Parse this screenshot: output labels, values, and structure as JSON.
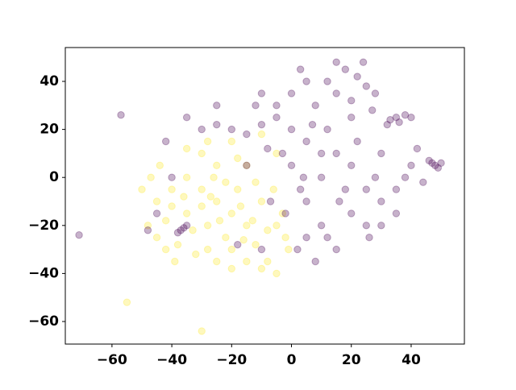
{
  "chart_data": {
    "type": "scatter",
    "xlim": [
      -75.6,
      57.8
    ],
    "ylim": [
      -69.4,
      54.1
    ],
    "xticks": [
      {
        "value": -60,
        "label": "−60"
      },
      {
        "value": -40,
        "label": "−40"
      },
      {
        "value": -20,
        "label": "−20"
      },
      0,
      20,
      40
    ],
    "yticks": [
      {
        "value": -60,
        "label": "−60"
      },
      {
        "value": -40,
        "label": "−40"
      },
      {
        "value": -20,
        "label": "−20"
      },
      0,
      20,
      40
    ],
    "alpha": 0.3,
    "series": [
      {
        "color": "#fde725",
        "x": [
          -20,
          -25,
          -15,
          -30,
          -10,
          -22,
          -35,
          -18,
          -28,
          -12,
          -40,
          -45,
          -38,
          -25,
          -15,
          -30,
          -20,
          -10,
          -8,
          -5,
          -15,
          -25,
          -32,
          -42,
          -48,
          -47,
          -44,
          -35,
          -5,
          -2,
          -6,
          -3,
          -27,
          -17,
          -22,
          -12,
          -33,
          -8,
          -30,
          -40,
          -20,
          -10,
          -28,
          -45,
          -39,
          -18,
          -28,
          -35,
          -5,
          -1,
          -13,
          -24,
          -36,
          -50,
          -42,
          -20,
          -55,
          -30,
          -16,
          -26
        ],
        "y": [
          -15,
          -10,
          -20,
          -5,
          -10,
          -25,
          -15,
          -5,
          -20,
          -28,
          -5,
          -10,
          -28,
          5,
          5,
          10,
          15,
          18,
          -35,
          -40,
          -35,
          -35,
          -32,
          -18,
          -20,
          0,
          5,
          0,
          -20,
          -25,
          -5,
          -15,
          -8,
          -12,
          -2,
          -2,
          -22,
          -22,
          -12,
          -12,
          -30,
          -38,
          -30,
          -25,
          -35,
          8,
          15,
          12,
          10,
          -30,
          -18,
          -18,
          -8,
          -5,
          -30,
          -38,
          -52,
          -64,
          -26,
          0
        ]
      },
      {
        "color": "#440154",
        "x": [
          10,
          15,
          20,
          5,
          25,
          30,
          12,
          20,
          8,
          15,
          25,
          5,
          18,
          22,
          28,
          10,
          20,
          30,
          5,
          15,
          25,
          35,
          40,
          32,
          35,
          38,
          40,
          33,
          36,
          47,
          48,
          50,
          46,
          49,
          -37,
          -36,
          -38,
          -35,
          -71,
          -57,
          0,
          -5,
          -10,
          -15,
          -20,
          -25,
          -30,
          -35,
          -3,
          0,
          5,
          3,
          -2,
          2,
          8,
          12,
          18,
          22,
          28,
          35,
          26,
          0,
          -5,
          -10,
          3,
          15,
          24,
          -12,
          -8,
          -15,
          -18,
          -10,
          -25,
          -45,
          -48,
          -40,
          -42,
          42,
          44,
          30,
          10,
          16,
          7,
          27,
          12,
          -7,
          4,
          20,
          38
        ],
        "y": [
          0,
          10,
          5,
          -10,
          -5,
          10,
          20,
          25,
          30,
          35,
          38,
          40,
          45,
          42,
          35,
          -20,
          -15,
          -10,
          -25,
          -30,
          -20,
          -5,
          5,
          22,
          25,
          26,
          25,
          24,
          23,
          6,
          5,
          6,
          7,
          4,
          -22,
          -21,
          -23,
          -20,
          -24,
          26,
          20,
          25,
          22,
          18,
          20,
          22,
          20,
          25,
          10,
          5,
          15,
          -5,
          -15,
          -30,
          -35,
          -25,
          -5,
          15,
          0,
          -15,
          -25,
          35,
          30,
          35,
          45,
          48,
          48,
          30,
          12,
          5,
          -28,
          -30,
          30,
          -15,
          -22,
          0,
          15,
          12,
          -2,
          -20,
          10,
          -10,
          22,
          28,
          40,
          -10,
          0,
          32,
          0
        ]
      }
    ]
  }
}
